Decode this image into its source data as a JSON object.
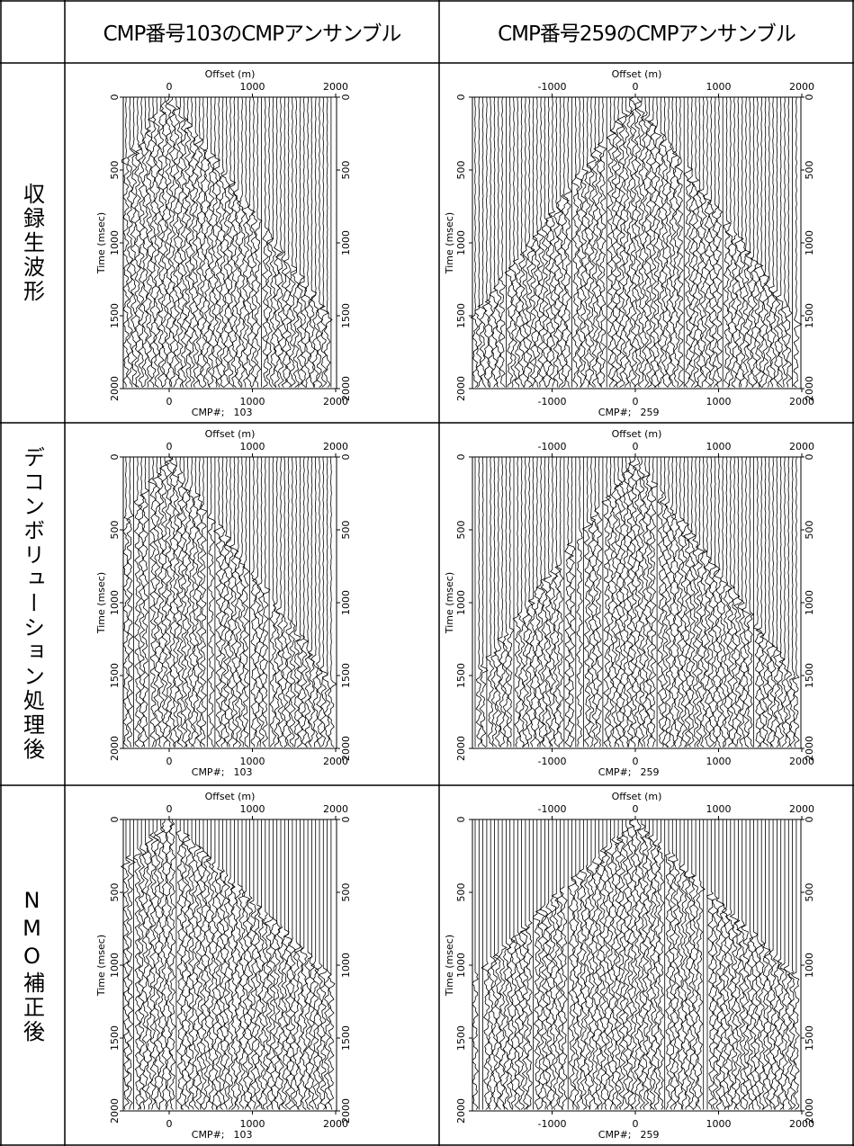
{
  "header": {
    "columns": [
      "CMP番号103のCMPアンサンブル",
      "CMP番号259のCMPアンサンブル"
    ]
  },
  "rows": [
    {
      "label": "収録生波形"
    },
    {
      "label": "デコンボリューション処理後"
    },
    {
      "label": "NMO補正後"
    }
  ],
  "panels": [
    [
      {
        "offset_label": "Offset (m)",
        "time_label": "Time (msec)",
        "cmp_label": "CMP#;",
        "cmp": "103",
        "top_ticks": [
          0,
          1000,
          2000
        ],
        "bottom_ticks": [
          0,
          1000,
          2000
        ],
        "left_ticks": [
          0,
          500,
          1000,
          1500,
          2000
        ],
        "right_ticks": [
          0,
          500,
          1000,
          1500,
          2000
        ]
      },
      {
        "offset_label": "Offset (m)",
        "time_label": "Time (msec)",
        "cmp_label": "CMP#;",
        "cmp": "259",
        "top_ticks": [
          -1000,
          0,
          1000,
          2000
        ],
        "bottom_ticks": [
          -1000,
          0,
          1000,
          2000
        ],
        "left_ticks": [
          0,
          500,
          1000,
          1500,
          2000
        ],
        "right_ticks": [
          0,
          500,
          1000,
          1500,
          2000
        ]
      }
    ],
    [
      {
        "offset_label": "Offset (m)",
        "time_label": "Time (msec)",
        "cmp_label": "CMP#;",
        "cmp": "103",
        "top_ticks": [
          0,
          1000,
          2000
        ],
        "bottom_ticks": [
          0,
          1000,
          2000
        ],
        "left_ticks": [
          0,
          500,
          1000,
          1500,
          2000
        ],
        "right_ticks": [
          0,
          500,
          1000,
          1500,
          2000
        ]
      },
      {
        "offset_label": "Offset (m)",
        "time_label": "Time (msec)",
        "cmp_label": "CMP#;",
        "cmp": "259",
        "top_ticks": [
          -1000,
          0,
          1000,
          2000
        ],
        "bottom_ticks": [
          -1000,
          0,
          1000,
          2000
        ],
        "left_ticks": [
          0,
          500,
          1000,
          1500,
          2000
        ],
        "right_ticks": [
          0,
          500,
          1000,
          1500,
          2000
        ]
      }
    ],
    [
      {
        "offset_label": "Offset (m)",
        "time_label": "Time (msec)",
        "cmp_label": "CMP#;",
        "cmp": "103",
        "top_ticks": [
          0,
          1000,
          2000
        ],
        "bottom_ticks": [
          0,
          1000,
          2000
        ],
        "left_ticks": [
          0,
          500,
          1000,
          1500,
          2000
        ],
        "right_ticks": [
          0,
          500,
          1000,
          1500,
          2000
        ]
      },
      {
        "offset_label": "Offset (m)",
        "time_label": "Time (msec)",
        "cmp_label": "CMP#;",
        "cmp": "259",
        "top_ticks": [
          -1000,
          0,
          1000,
          2000
        ],
        "bottom_ticks": [
          -1000,
          0,
          1000,
          2000
        ],
        "left_ticks": [
          0,
          500,
          1000,
          1500,
          2000
        ],
        "right_ticks": [
          0,
          500,
          1000,
          1500,
          2000
        ]
      }
    ]
  ]
}
